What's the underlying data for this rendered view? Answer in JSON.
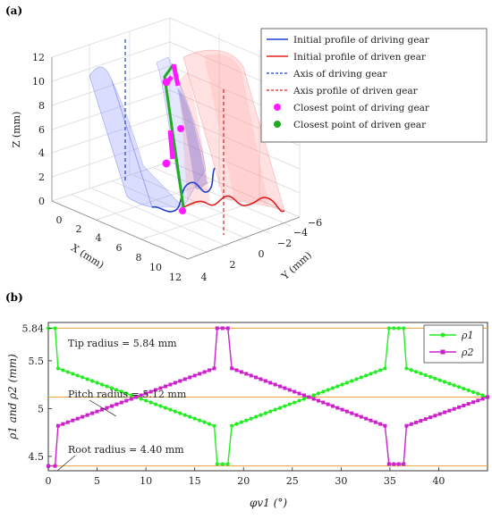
{
  "chart_data": [
    {
      "panel": "(a)",
      "type": "3d-surface",
      "axes": {
        "x": {
          "label": "X (mm)",
          "ticks": [
            "0",
            "2",
            "4",
            "6",
            "8",
            "10",
            "12"
          ]
        },
        "y": {
          "label": "Y (mm)",
          "ticks": [
            "4",
            "2",
            "0",
            "−2",
            "−4",
            "−6"
          ]
        },
        "z": {
          "label": "Z (mm)",
          "ticks": [
            "0",
            "2",
            "4",
            "6",
            "8",
            "10",
            "12"
          ]
        }
      },
      "grid": true,
      "legend_placement": "top-right",
      "legend": [
        {
          "label": "Initial profile of driving gear",
          "color": "#1f3fd1",
          "style": "solid"
        },
        {
          "label": "Initial profile of driven gear",
          "color": "#e02020",
          "style": "solid"
        },
        {
          "label": "Axis of driving gear",
          "color": "#1f3fd1",
          "style": "dashed"
        },
        {
          "label": "Axis profile of driven gear",
          "color": "#e02020",
          "style": "dashed"
        },
        {
          "label": "Closest point of driving gear",
          "color": "#ff1aff",
          "style": "dot"
        },
        {
          "label": "Closest point of driven gear",
          "color": "#22aa22",
          "style": "dot"
        }
      ]
    },
    {
      "panel": "(b)",
      "type": "line",
      "xlabel": "φv1 (°)",
      "ylabel": "ρ1 and ρ2 (mm)",
      "xlim": [
        0,
        45
      ],
      "ylim": [
        4.35,
        5.9
      ],
      "xticks": [
        0,
        5,
        10,
        15,
        20,
        25,
        30,
        35,
        40
      ],
      "yticks": [
        4.5,
        5,
        5.5,
        5.84
      ],
      "ytick_labels": [
        "4.5",
        "5",
        "5.5",
        "5.84"
      ],
      "reference_lines": [
        {
          "label": "Tip radius = 5.84 mm",
          "y": 5.84,
          "color": "#e8a33c"
        },
        {
          "label": "Pitch radius = 5.12 mm",
          "y": 5.12,
          "color": "#e8a33c"
        },
        {
          "label": "Root radius = 4.40 mm",
          "y": 4.4,
          "color": "#e8a33c"
        }
      ],
      "legend_placement": "top-right",
      "series": [
        {
          "name": "ρ1",
          "color": "#22ee22",
          "marker": "circle",
          "points": [
            [
              0,
              5.84
            ],
            [
              0.7,
              5.84
            ],
            [
              1,
              5.42
            ],
            [
              9,
              5.12
            ],
            [
              17,
              4.82
            ],
            [
              17.3,
              4.42
            ],
            [
              18.4,
              4.42
            ],
            [
              18.8,
              4.82
            ],
            [
              26.7,
              5.12
            ],
            [
              34.5,
              5.42
            ],
            [
              34.9,
              5.84
            ],
            [
              36.4,
              5.84
            ],
            [
              36.7,
              5.42
            ],
            [
              45,
              5.12
            ]
          ]
        },
        {
          "name": "ρ2",
          "color": "#cc22cc",
          "marker": "square",
          "points": [
            [
              0,
              4.4
            ],
            [
              0.7,
              4.4
            ],
            [
              1,
              4.82
            ],
            [
              9,
              5.12
            ],
            [
              17,
              5.42
            ],
            [
              17.3,
              5.84
            ],
            [
              18.4,
              5.84
            ],
            [
              18.8,
              5.42
            ],
            [
              26.7,
              5.12
            ],
            [
              34.5,
              4.82
            ],
            [
              34.9,
              4.42
            ],
            [
              36.4,
              4.42
            ],
            [
              36.7,
              4.82
            ],
            [
              45,
              5.12
            ]
          ]
        }
      ]
    }
  ]
}
